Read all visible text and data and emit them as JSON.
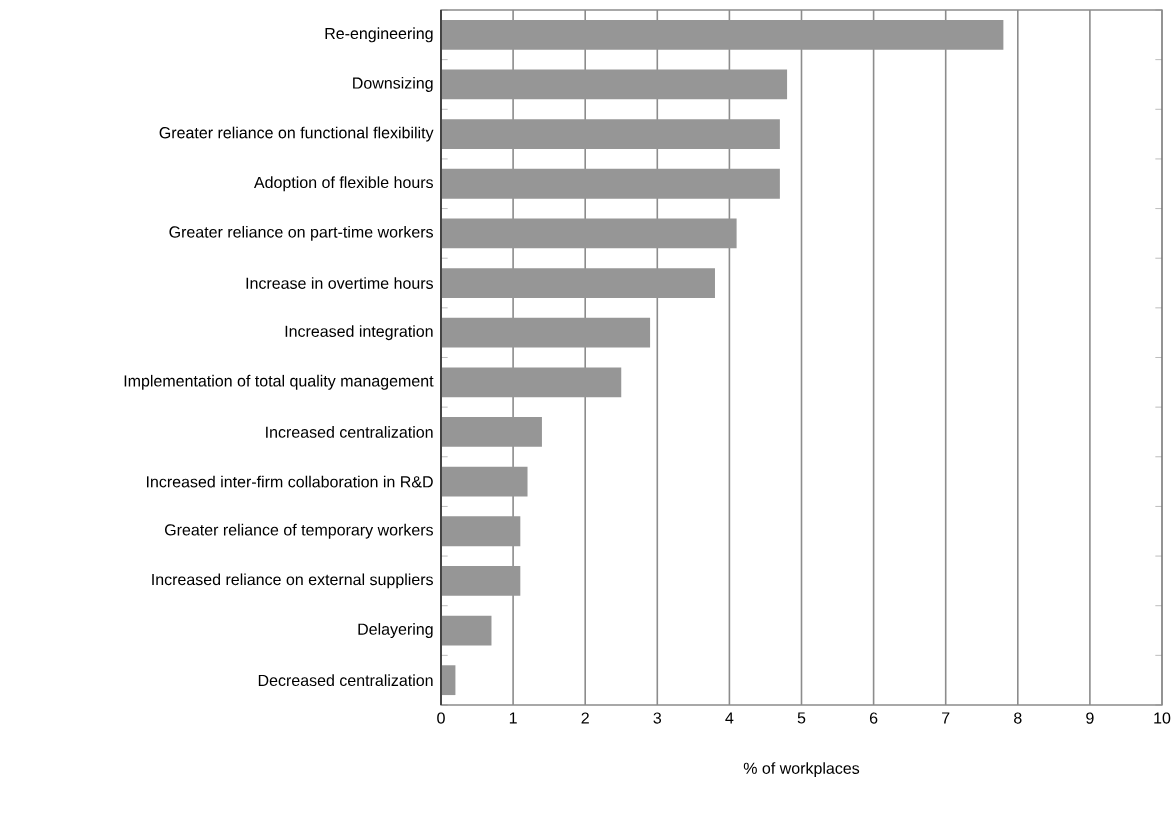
{
  "chart_data": {
    "type": "bar",
    "orientation": "horizontal",
    "xlabel": "% of workplaces",
    "categories": [
      "Re-engineering",
      "Downsizing",
      "Greater reliance on functional flexibility",
      "Adoption of flexible hours",
      "Greater reliance on part-time workers",
      "Increase in overtime hours",
      "Increased integration",
      "Implementation of total quality management",
      "Increased centralization",
      "Increased inter-firm collaboration in R&D",
      "Greater reliance of temporary workers",
      "Increased reliance on external suppliers",
      "Delayering",
      "Decreased centralization"
    ],
    "values": [
      7.8,
      4.8,
      4.7,
      4.7,
      4.1,
      3.8,
      2.9,
      2.5,
      1.4,
      1.2,
      1.1,
      1.1,
      0.7,
      0.2
    ],
    "color": "#969696",
    "xlim": [
      0,
      10
    ],
    "xticks": [
      0,
      1,
      2,
      3,
      4,
      5,
      6,
      7,
      8,
      9,
      10
    ],
    "grid": "x"
  }
}
